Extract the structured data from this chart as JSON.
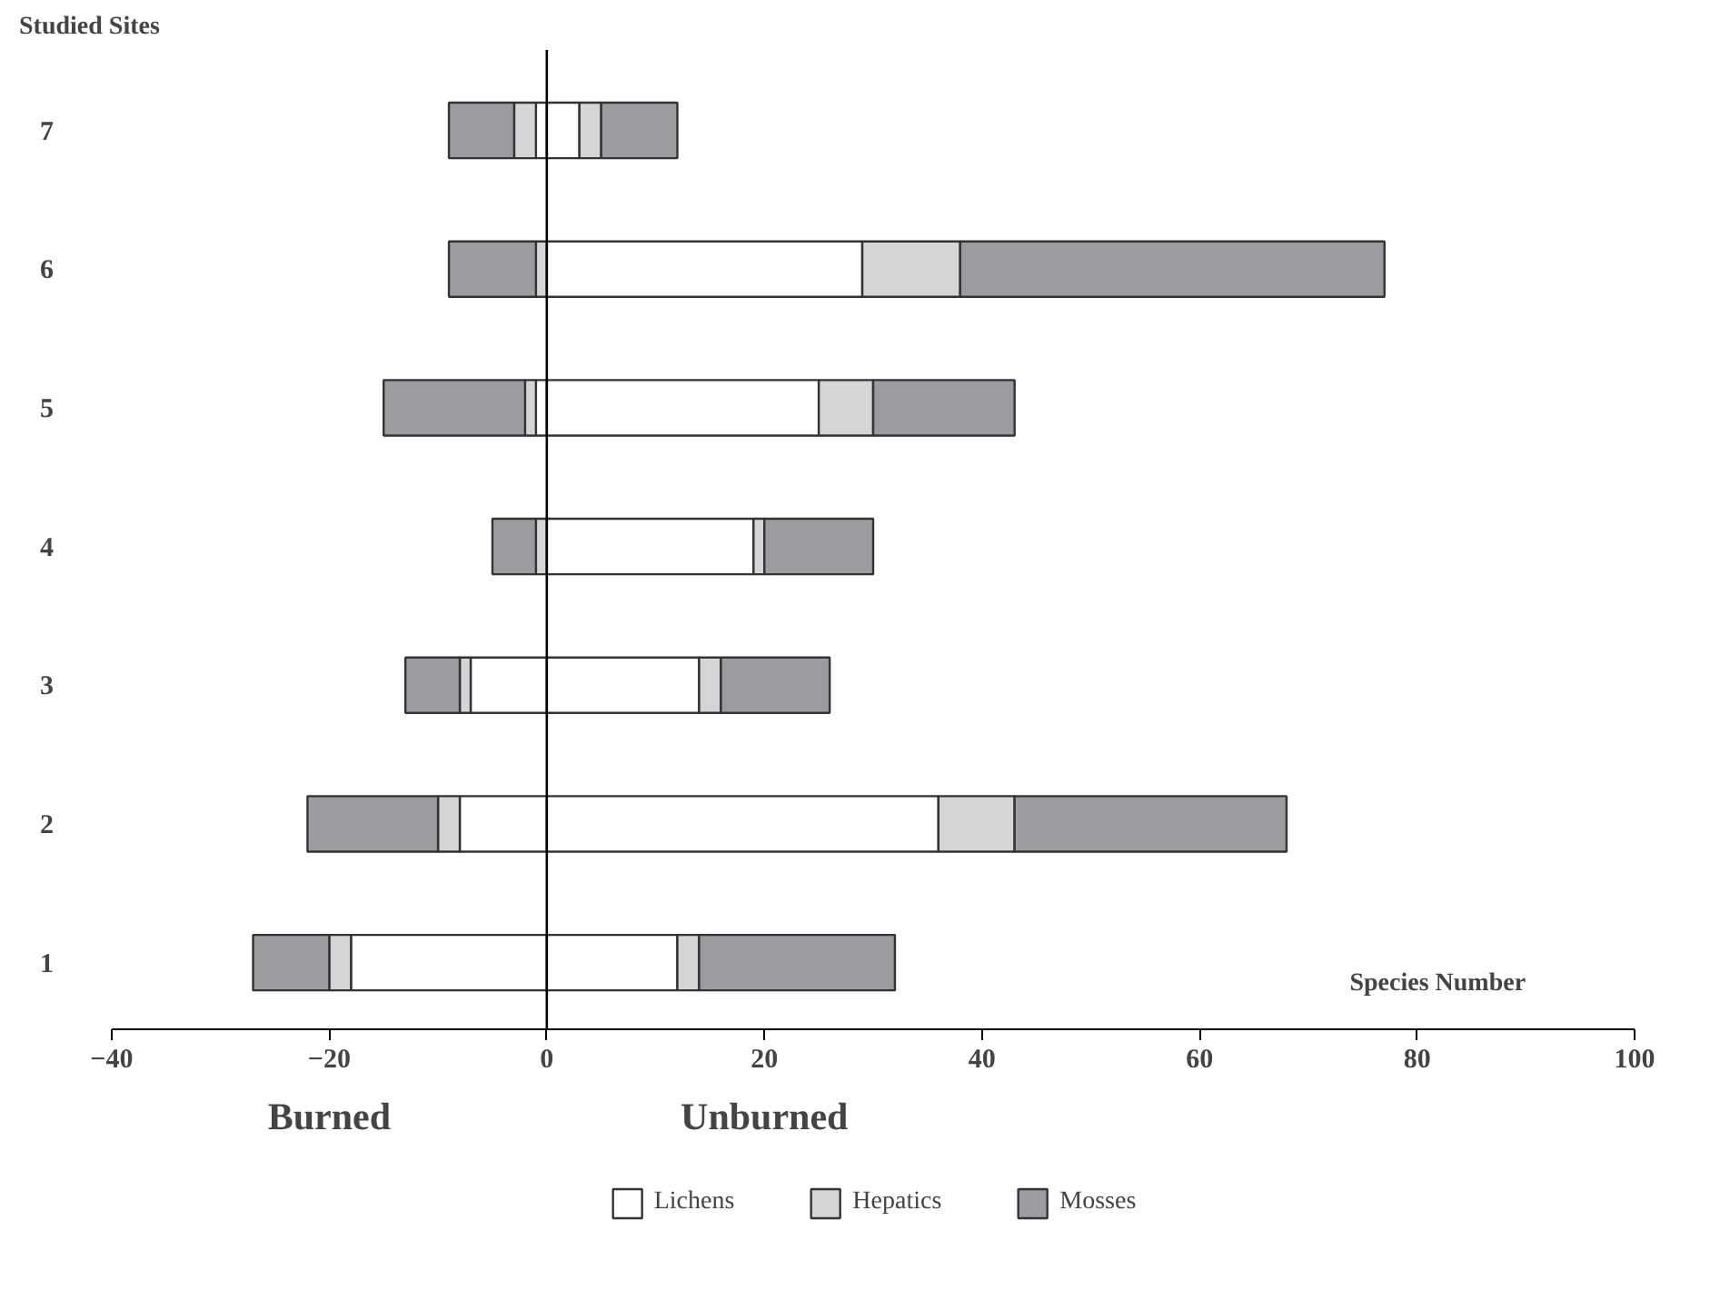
{
  "chart_data": {
    "type": "bar",
    "orientation": "horizontal",
    "stacked": true,
    "ylabel": "Studied Sites",
    "xlabel": "Species Number",
    "categories": [
      "7",
      "6",
      "5",
      "4",
      "3",
      "2",
      "1"
    ],
    "series": [
      {
        "name": "Lichens",
        "color": "#ffffff",
        "values": [
          3,
          29,
          25,
          19,
          14,
          36,
          12
        ]
      },
      {
        "name": "Hepatics",
        "color": "#d4d5d7",
        "values": [
          2,
          9,
          5,
          1,
          2,
          7,
          2
        ]
      },
      {
        "name": "Mosses",
        "color": "#9b9c9f",
        "values": [
          7,
          39,
          13,
          10,
          10,
          25,
          18
        ]
      },
      {
        "color": "#ffffff",
        "values": [
          -1,
          0,
          -1,
          0,
          -7,
          -8,
          -18
        ]
      },
      {
        "color": "#d4d5d7",
        "values": [
          -2,
          -1,
          -1,
          -1,
          -1,
          -2,
          -2
        ]
      },
      {
        "color": "#9b9c9f",
        "values": [
          -6,
          -8,
          -13,
          -4,
          -5,
          -12,
          -7
        ]
      }
    ],
    "xlim": [
      -40,
      100
    ],
    "xticks": [
      -40,
      -20,
      0,
      20,
      40,
      60,
      80,
      100
    ],
    "ref_lines": [
      {
        "axis": "x",
        "value": 0
      }
    ],
    "annotations": [
      "Burned",
      "Unburned"
    ],
    "legend": "bottom",
    "grid": false
  }
}
